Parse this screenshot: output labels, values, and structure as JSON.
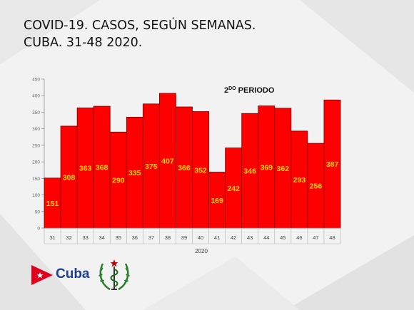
{
  "title": {
    "line1": "COVID-19. CASOS, SEGÚN SEMANAS.",
    "line2": "CUBA. 31-48 2020."
  },
  "logo": {
    "text": "Cuba"
  },
  "colors": {
    "bar": "#ff0000",
    "bar_edge": "#7a0000",
    "label": "#ffd700",
    "axis": "#8c8c8c",
    "brand": "#1c3f94"
  },
  "chart_data": {
    "type": "bar",
    "categories": [
      "31",
      "32",
      "33",
      "34",
      "35",
      "36",
      "37",
      "38",
      "39",
      "40",
      "41",
      "42",
      "43",
      "44",
      "45",
      "46",
      "47",
      "48"
    ],
    "values": [
      151,
      308,
      363,
      368,
      290,
      335,
      375,
      407,
      366,
      352,
      169,
      242,
      346,
      369,
      362,
      293,
      256,
      387
    ],
    "xlabel": "2020",
    "ylim": [
      0,
      450
    ],
    "yticks": [
      0,
      50,
      100,
      150,
      200,
      250,
      300,
      350,
      400,
      450
    ],
    "annotation": {
      "base": "2",
      "sup": "DO",
      "rest": " PERIODO"
    },
    "grid": false
  }
}
